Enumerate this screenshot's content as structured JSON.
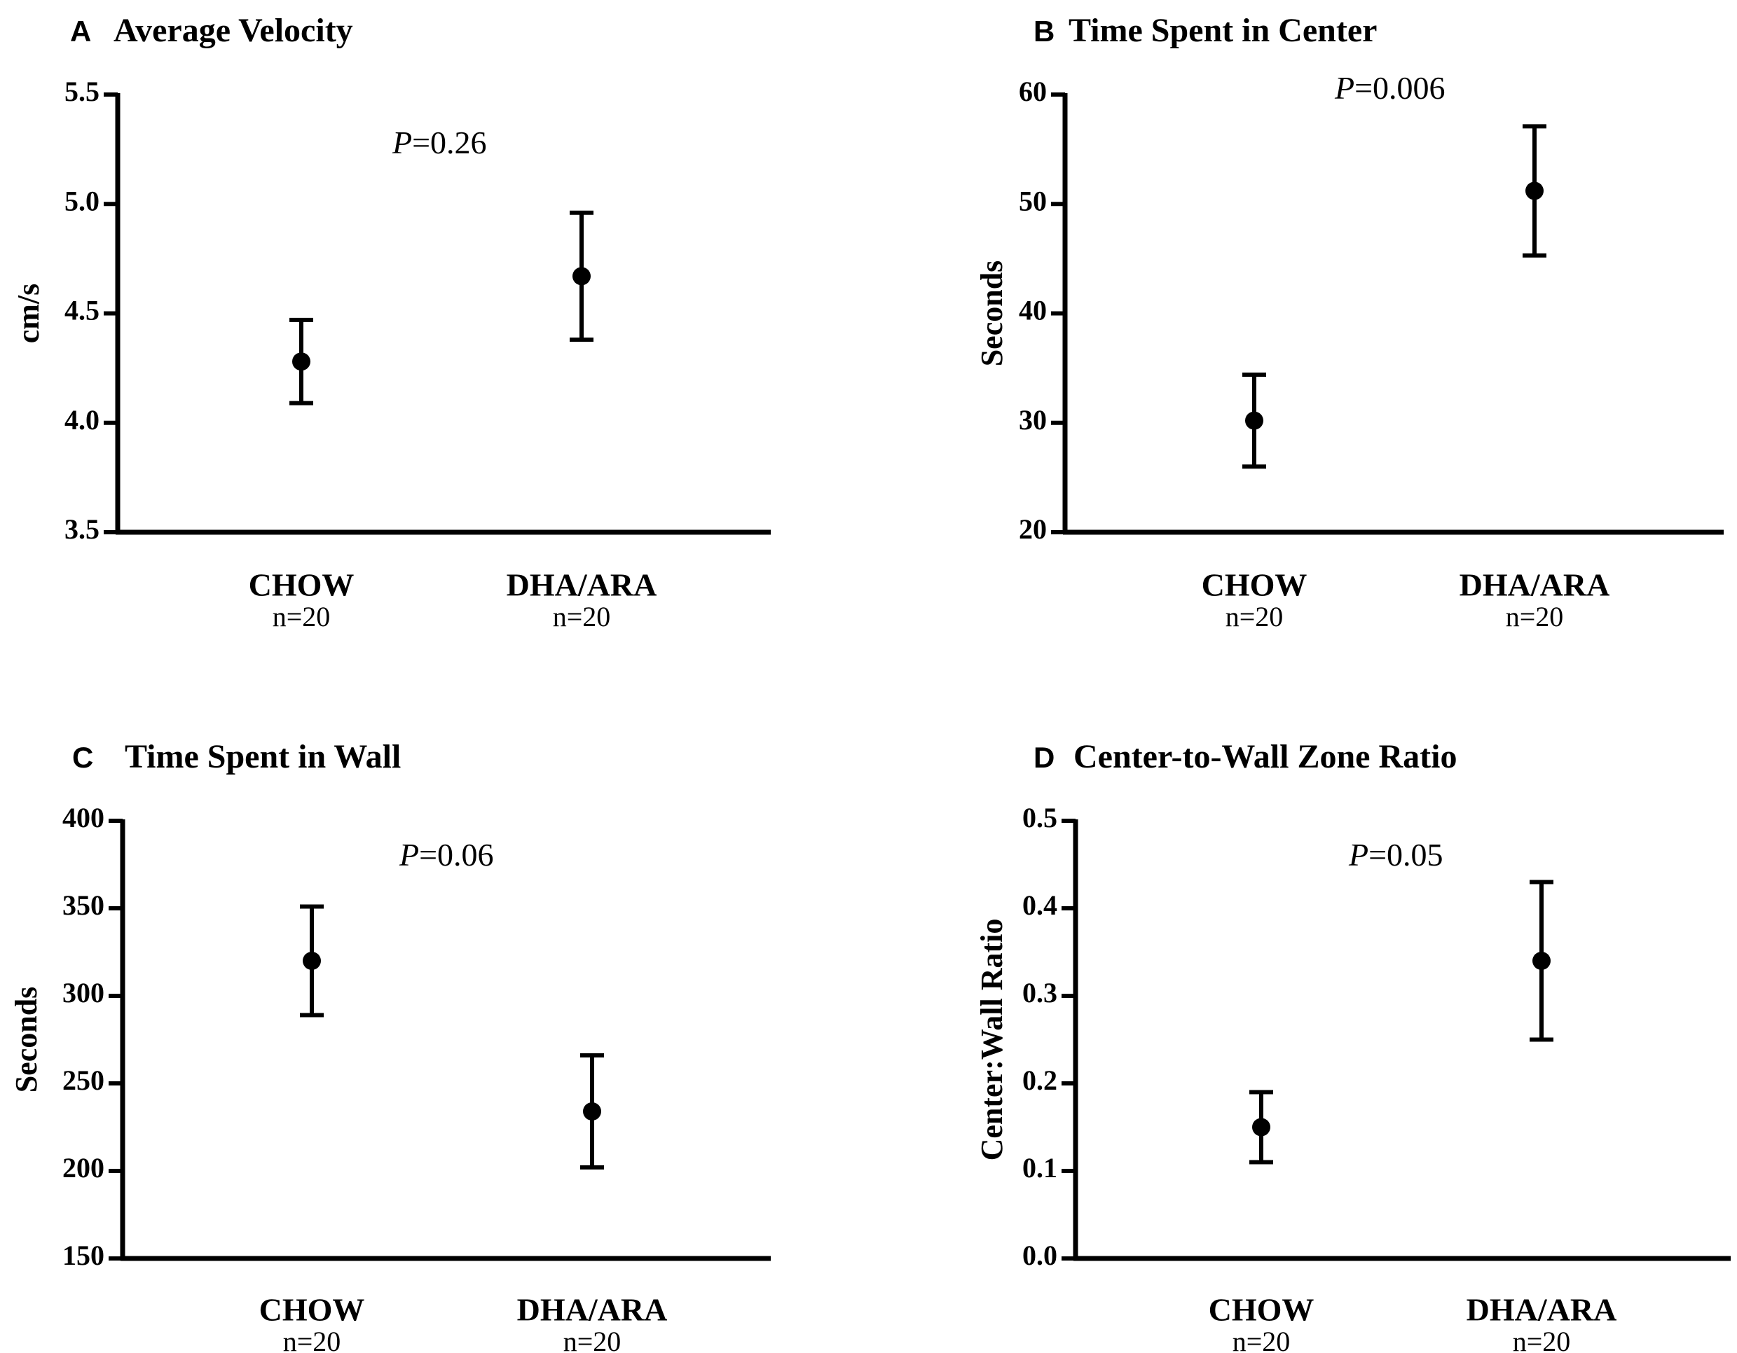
{
  "chart_data": [
    {
      "type": "scatter",
      "panel_letter": "A",
      "title": "Average Velocity",
      "ylabel": "cm/s",
      "ylim": [
        3.5,
        5.5
      ],
      "yticks": [
        "3.5",
        "4.0",
        "4.5",
        "5.0",
        "5.5"
      ],
      "p_label": "P",
      "p_value": "=0.26",
      "categories": [
        "CHOW",
        "DHA/ARA"
      ],
      "n_labels": [
        "n=20",
        "n=20"
      ],
      "means": [
        4.28,
        4.67
      ],
      "err_low": [
        4.09,
        4.38
      ],
      "err_high": [
        4.47,
        4.96
      ]
    },
    {
      "type": "scatter",
      "panel_letter": "B",
      "title": "Time Spent in Center",
      "ylabel": "Seconds",
      "ylim": [
        20,
        60
      ],
      "yticks": [
        "20",
        "30",
        "40",
        "50",
        "60"
      ],
      "p_label": "P",
      "p_value": "=0.006",
      "categories": [
        "CHOW",
        "DHA/ARA"
      ],
      "n_labels": [
        "n=20",
        "n=20"
      ],
      "means": [
        30.2,
        51.2
      ],
      "err_low": [
        26.0,
        45.3
      ],
      "err_high": [
        34.4,
        57.1
      ]
    },
    {
      "type": "scatter",
      "panel_letter": "C",
      "title": "Time Spent in Wall",
      "ylabel": "Seconds",
      "ylim": [
        150,
        400
      ],
      "yticks": [
        "150",
        "200",
        "250",
        "300",
        "350",
        "400"
      ],
      "p_label": "P",
      "p_value": "=0.06",
      "categories": [
        "CHOW",
        "DHA/ARA"
      ],
      "n_labels": [
        "n=20",
        "n=20"
      ],
      "means": [
        320,
        234
      ],
      "err_low": [
        289,
        202
      ],
      "err_high": [
        351,
        266
      ]
    },
    {
      "type": "scatter",
      "panel_letter": "D",
      "title": "Center-to-Wall Zone Ratio",
      "ylabel": "Center:Wall Ratio",
      "ylim": [
        0.0,
        0.5
      ],
      "yticks": [
        "0.0",
        "0.1",
        "0.2",
        "0.3",
        "0.4",
        "0.5"
      ],
      "p_label": "P",
      "p_value": "=0.05",
      "categories": [
        "CHOW",
        "DHA/ARA"
      ],
      "n_labels": [
        "n=20",
        "n=20"
      ],
      "means": [
        0.15,
        0.34
      ],
      "err_low": [
        0.11,
        0.25
      ],
      "err_high": [
        0.19,
        0.43
      ]
    }
  ]
}
